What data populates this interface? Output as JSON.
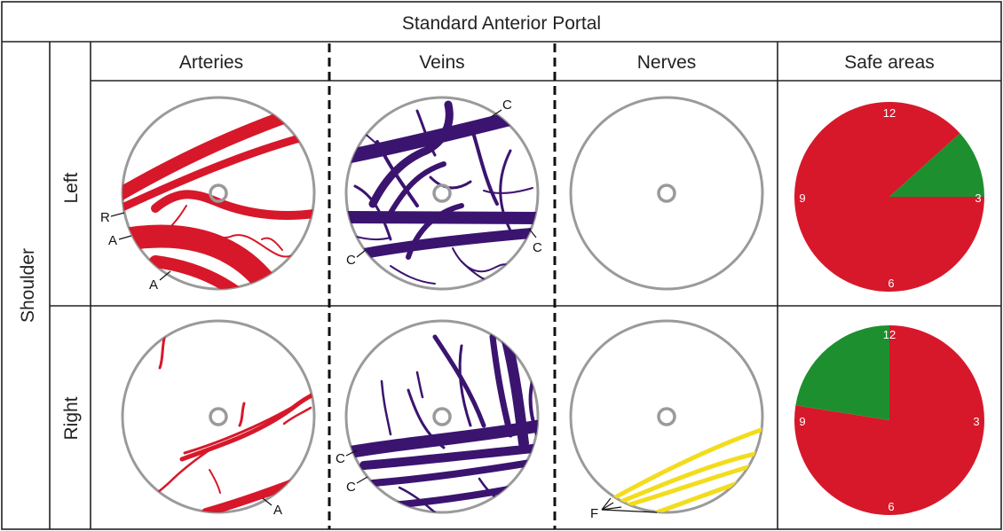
{
  "title": "Standard Anterior Portal",
  "region": "Shoulder",
  "rows": [
    {
      "label": "Left"
    },
    {
      "label": "Right"
    }
  ],
  "columns": [
    {
      "label": "Arteries"
    },
    {
      "label": "Veins"
    },
    {
      "label": "Nerves"
    },
    {
      "label": "Safe areas"
    }
  ],
  "structure_labels": {
    "left_arteries": [
      "R",
      "A",
      "A"
    ],
    "left_veins": [
      "C",
      "C",
      "C"
    ],
    "right_arteries": [
      "A"
    ],
    "right_veins": [
      "C",
      "C"
    ],
    "right_nerves": [
      "F"
    ]
  },
  "clock_labels": {
    "top": "12",
    "right": "3",
    "bottom": "6",
    "left": "9"
  },
  "colors": {
    "artery": "#d7182a",
    "vein": "#3b1470",
    "nerve": "#f3dc1c",
    "unsafe": "#d7182a",
    "safe": "#1e8f2f",
    "lens_border": "#9a9a9a"
  },
  "chart_data": [
    {
      "type": "pie",
      "title": "",
      "row": "Left",
      "slices": [
        {
          "area": "unsafe",
          "from_clock": 3,
          "to_clock": 1.6,
          "color": "#d7182a"
        },
        {
          "area": "safe",
          "from_clock": 1.6,
          "to_clock": 3,
          "color": "#1e8f2f"
        }
      ]
    },
    {
      "type": "pie",
      "title": "",
      "row": "Right",
      "slices": [
        {
          "area": "unsafe",
          "from_clock": 12,
          "to_clock": 9.3,
          "color": "#d7182a"
        },
        {
          "area": "safe",
          "from_clock": 9.3,
          "to_clock": 12,
          "color": "#1e8f2f"
        }
      ]
    }
  ]
}
